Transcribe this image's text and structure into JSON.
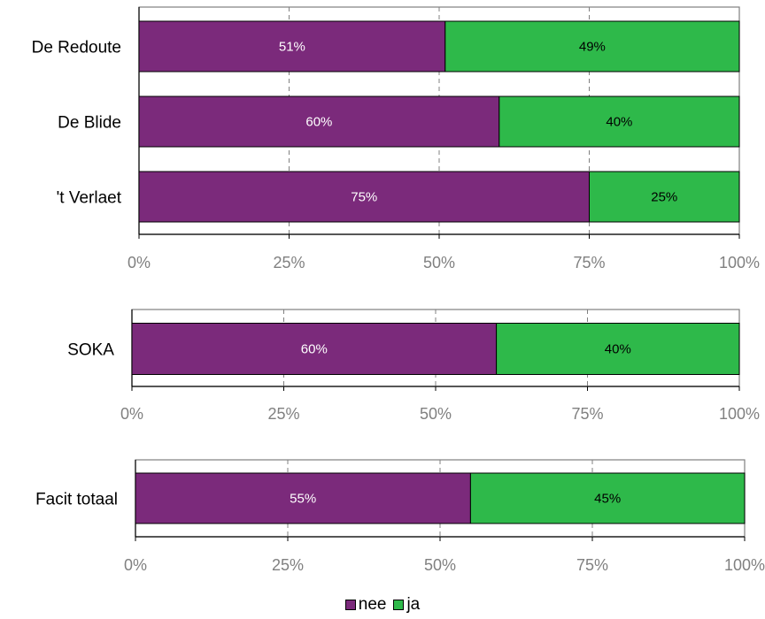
{
  "chart_data": [
    {
      "type": "bar",
      "orientation": "horizontal",
      "stacked": true,
      "percent": true,
      "categories": [
        "De Redoute",
        "De Blide",
        "'t Verlaet"
      ],
      "series": [
        {
          "name": "nee",
          "values": [
            51,
            60,
            75
          ],
          "labels": [
            "51%",
            "60%",
            "75%"
          ]
        },
        {
          "name": "ja",
          "values": [
            49,
            40,
            25
          ],
          "labels": [
            "49%",
            "40%",
            "25%"
          ]
        }
      ],
      "xlim": [
        0,
        100
      ],
      "xticks": [
        "0%",
        "25%",
        "50%",
        "75%",
        "100%"
      ],
      "grid": "vertical dashed"
    },
    {
      "type": "bar",
      "orientation": "horizontal",
      "stacked": true,
      "percent": true,
      "categories": [
        "SOKA"
      ],
      "series": [
        {
          "name": "nee",
          "values": [
            60
          ],
          "labels": [
            "60%"
          ]
        },
        {
          "name": "ja",
          "values": [
            40
          ],
          "labels": [
            "40%"
          ]
        }
      ],
      "xlim": [
        0,
        100
      ],
      "xticks": [
        "0%",
        "25%",
        "50%",
        "75%",
        "100%"
      ],
      "grid": "vertical dashed"
    },
    {
      "type": "bar",
      "orientation": "horizontal",
      "stacked": true,
      "percent": true,
      "categories": [
        "Facit totaal"
      ],
      "series": [
        {
          "name": "nee",
          "values": [
            55
          ],
          "labels": [
            "55%"
          ]
        },
        {
          "name": "ja",
          "values": [
            45
          ],
          "labels": [
            "45%"
          ]
        }
      ],
      "xlim": [
        0,
        100
      ],
      "xticks": [
        "0%",
        "25%",
        "50%",
        "75%",
        "100%"
      ],
      "grid": "vertical dashed"
    }
  ],
  "legend": {
    "position": "bottom",
    "items": [
      {
        "label": "nee",
        "color": "#7b2a7b"
      },
      {
        "label": "ja",
        "color": "#2eb94a"
      }
    ]
  },
  "colors": {
    "nee": "#7b2a7b",
    "ja": "#2eb94a",
    "nee_label": "#ffffff",
    "ja_label": "#000000"
  }
}
